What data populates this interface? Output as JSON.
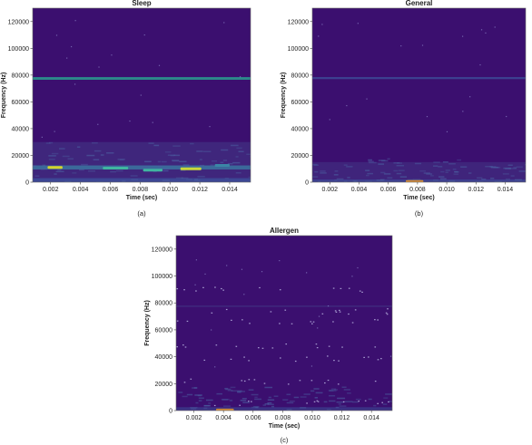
{
  "chart_data": [
    {
      "type": "heatmap",
      "caption": "(a)",
      "title": "Sleep",
      "xlabel": "Time (sec)",
      "ylabel": "Frequency (Hz)",
      "xlim": [
        0.0008,
        0.0154
      ],
      "ylim": [
        0,
        130000
      ],
      "x_ticks": [
        0.002,
        0.004,
        0.006,
        0.008,
        0.01,
        0.012,
        0.014
      ],
      "x_tick_labels": [
        "0.002",
        "0.004",
        "0.006",
        "0.008",
        "0.010",
        "0.012",
        "0.014"
      ],
      "y_ticks": [
        0,
        20000,
        40000,
        60000,
        80000,
        100000,
        120000
      ],
      "y_tick_labels": [
        "0",
        "20000",
        "40000",
        "60000",
        "80000",
        "100000",
        "120000"
      ],
      "background": "#3b0f6f",
      "bands": [
        {
          "freq_low": 0,
          "freq_high": 30000,
          "color": "#433a87",
          "opacity": 0.55
        },
        {
          "freq_low": 76500,
          "freq_high": 78500,
          "color": "#2a9d8f",
          "opacity": 0.85
        },
        {
          "freq_low": 0,
          "freq_high": 3000,
          "color": "#3d63a8",
          "opacity": 0.55
        },
        {
          "freq_low": 9500,
          "freq_high": 12500,
          "color": "#3b86a6",
          "opacity": 0.7
        }
      ],
      "hotspots": [
        {
          "t": 0.0018,
          "t_end": 0.0028,
          "freq": 11000,
          "color": "#d4d42e"
        },
        {
          "t": 0.0055,
          "t_end": 0.0072,
          "freq": 10500,
          "color": "#40b5a0"
        },
        {
          "t": 0.0082,
          "t_end": 0.0095,
          "freq": 9000,
          "color": "#40b5a0"
        },
        {
          "t": 0.0107,
          "t_end": 0.0121,
          "freq": 10000,
          "color": "#c8d83a"
        },
        {
          "t": 0.013,
          "t_end": 0.014,
          "freq": 12500,
          "color": "#3b86a6"
        }
      ]
    },
    {
      "type": "heatmap",
      "caption": "(b)",
      "title": "General",
      "xlabel": "Time (sec)",
      "ylabel": "Frequency (Hz)",
      "xlim": [
        0.0008,
        0.0154
      ],
      "ylim": [
        0,
        130000
      ],
      "x_ticks": [
        0.002,
        0.004,
        0.006,
        0.008,
        0.01,
        0.012,
        0.014
      ],
      "x_tick_labels": [
        "0.002",
        "0.004",
        "0.006",
        "0.008",
        "0.010",
        "0.012",
        "0.014"
      ],
      "y_ticks": [
        0,
        20000,
        40000,
        60000,
        80000,
        100000,
        120000
      ],
      "y_tick_labels": [
        "0",
        "20000",
        "40000",
        "60000",
        "80000",
        "100000",
        "120000"
      ],
      "background": "#3b0f6f",
      "bands": [
        {
          "freq_low": 0,
          "freq_high": 15000,
          "color": "#433a87",
          "opacity": 0.5
        },
        {
          "freq_low": 77000,
          "freq_high": 78500,
          "color": "#3d63a8",
          "opacity": 0.6
        },
        {
          "freq_low": 0,
          "freq_high": 2000,
          "color": "#3d63a8",
          "opacity": 0.45
        }
      ],
      "hotspots": [
        {
          "t": 0.0072,
          "t_end": 0.0084,
          "freq": 500,
          "color": "#d08a3a"
        }
      ]
    },
    {
      "type": "heatmap",
      "caption": "(c)",
      "title": "Allergen",
      "xlabel": "Time (sec)",
      "ylabel": "Frequency (Hz)",
      "xlim": [
        0.0008,
        0.0154
      ],
      "ylim": [
        0,
        130000
      ],
      "x_ticks": [
        0.002,
        0.004,
        0.006,
        0.008,
        0.01,
        0.012,
        0.014
      ],
      "x_tick_labels": [
        "0.002",
        "0.004",
        "0.006",
        "0.008",
        "0.010",
        "0.012",
        "0.014"
      ],
      "y_ticks": [
        0,
        20000,
        40000,
        60000,
        80000,
        100000,
        120000
      ],
      "y_tick_labels": [
        "0",
        "20000",
        "40000",
        "60000",
        "80000",
        "100000",
        "120000"
      ],
      "background": "#3b0f6f",
      "bands": [
        {
          "freq_low": 0,
          "freq_high": 2500,
          "color": "#3d63a8",
          "opacity": 0.4
        },
        {
          "freq_low": 77000,
          "freq_high": 78000,
          "color": "#433a87",
          "opacity": 0.6
        }
      ],
      "hotspots": [
        {
          "t": 0.0035,
          "t_end": 0.0047,
          "freq": 400,
          "color": "#d08a3a"
        }
      ],
      "speckle_rows": [
        90000,
        74000,
        66000,
        48000,
        39000,
        22000,
        6000
      ]
    }
  ]
}
